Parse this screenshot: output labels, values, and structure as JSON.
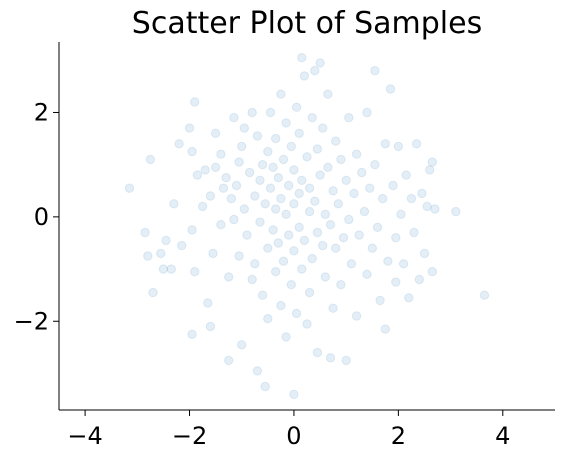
{
  "chart_data": {
    "type": "scatter",
    "title": "Scatter Plot of Samples",
    "xlabel": "",
    "ylabel": "",
    "xlim": [
      -4.5,
      5.0
    ],
    "ylim": [
      -3.7,
      3.35
    ],
    "xticks": [
      -4,
      -2,
      0,
      2,
      4
    ],
    "yticks": [
      -2,
      0,
      2
    ],
    "xtick_labels": [
      "−4",
      "−2",
      "0",
      "2",
      "4"
    ],
    "ytick_labels": [
      "−2",
      "0",
      "2"
    ],
    "grid": false,
    "spines": [
      "left",
      "bottom"
    ],
    "marker_color": "#1f77b4",
    "marker_alpha": 0.12,
    "series": [
      {
        "points": [
          [
            -3.15,
            0.55
          ],
          [
            -2.85,
            -0.3
          ],
          [
            -2.8,
            -0.75
          ],
          [
            -2.75,
            1.1
          ],
          [
            -2.7,
            -1.45
          ],
          [
            -2.55,
            -0.7
          ],
          [
            -2.5,
            -1.0
          ],
          [
            -2.45,
            -0.45
          ],
          [
            -2.3,
            0.25
          ],
          [
            -2.2,
            1.4
          ],
          [
            -2.15,
            -0.55
          ],
          [
            -2.0,
            1.7
          ],
          [
            -1.95,
            1.25
          ],
          [
            -1.95,
            -0.25
          ],
          [
            -1.9,
            -1.05
          ],
          [
            -1.95,
            -2.25
          ],
          [
            -1.9,
            2.2
          ],
          [
            -1.85,
            0.8
          ],
          [
            -1.75,
            0.2
          ],
          [
            -1.7,
            0.9
          ],
          [
            -1.65,
            -1.65
          ],
          [
            -1.6,
            -2.1
          ],
          [
            -1.6,
            0.4
          ],
          [
            -1.55,
            -0.7
          ],
          [
            -1.5,
            1.6
          ],
          [
            -1.5,
            0.95
          ],
          [
            -1.4,
            1.2
          ],
          [
            -1.4,
            -0.15
          ],
          [
            -1.35,
            0.55
          ],
          [
            -1.3,
            0.75
          ],
          [
            -1.25,
            -1.15
          ],
          [
            -1.25,
            -2.75
          ],
          [
            -1.2,
            0.35
          ],
          [
            -1.15,
            1.9
          ],
          [
            -1.15,
            -0.05
          ],
          [
            -1.1,
            0.6
          ],
          [
            -1.05,
            1.05
          ],
          [
            -1.05,
            -0.75
          ],
          [
            -1.0,
            -2.45
          ],
          [
            -1.0,
            1.35
          ],
          [
            -0.95,
            0.15
          ],
          [
            -0.95,
            1.7
          ],
          [
            -0.9,
            -0.35
          ],
          [
            -0.85,
            0.85
          ],
          [
            -0.8,
            2.0
          ],
          [
            -0.8,
            -1.2
          ],
          [
            -0.75,
            0.4
          ],
          [
            -0.75,
            -0.9
          ],
          [
            -0.7,
            1.55
          ],
          [
            -0.7,
            -2.95
          ],
          [
            -0.65,
            -0.1
          ],
          [
            -0.65,
            0.7
          ],
          [
            -0.6,
            1.0
          ],
          [
            -0.6,
            -1.5
          ],
          [
            -0.55,
            -3.25
          ],
          [
            -0.55,
            0.25
          ],
          [
            -0.5,
            -0.6
          ],
          [
            -0.5,
            1.25
          ],
          [
            -0.5,
            -1.95
          ],
          [
            -0.45,
            0.55
          ],
          [
            -0.45,
            2.0
          ],
          [
            -0.4,
            -0.25
          ],
          [
            -0.4,
            0.95
          ],
          [
            -0.35,
            -1.05
          ],
          [
            -0.35,
            0.15
          ],
          [
            -0.35,
            1.5
          ],
          [
            -0.3,
            -0.5
          ],
          [
            -0.3,
            0.75
          ],
          [
            -0.25,
            2.35
          ],
          [
            -0.25,
            -1.7
          ],
          [
            -0.25,
            0.35
          ],
          [
            -0.2,
            1.1
          ],
          [
            -0.2,
            -0.85
          ],
          [
            -0.15,
            0.05
          ],
          [
            -0.15,
            1.8
          ],
          [
            -0.15,
            -2.3
          ],
          [
            -0.1,
            0.6
          ],
          [
            -0.1,
            -0.35
          ],
          [
            -0.05,
            1.35
          ],
          [
            -0.05,
            -1.3
          ],
          [
            0.0,
            0.25
          ],
          [
            0.0,
            0.9
          ],
          [
            0.0,
            -0.65
          ],
          [
            0.0,
            -3.4
          ],
          [
            0.05,
            2.1
          ],
          [
            0.05,
            -1.85
          ],
          [
            0.1,
            0.45
          ],
          [
            0.1,
            -0.2
          ],
          [
            0.1,
            1.6
          ],
          [
            0.15,
            -1.0
          ],
          [
            0.15,
            3.05
          ],
          [
            0.15,
            0.7
          ],
          [
            0.2,
            2.7
          ],
          [
            0.2,
            -0.45
          ],
          [
            0.25,
            1.15
          ],
          [
            0.25,
            -2.05
          ],
          [
            0.3,
            0.1
          ],
          [
            0.3,
            0.55
          ],
          [
            0.3,
            -1.45
          ],
          [
            0.35,
            1.9
          ],
          [
            0.35,
            -0.8
          ],
          [
            0.4,
            2.8
          ],
          [
            0.4,
            0.3
          ],
          [
            0.45,
            -0.3
          ],
          [
            0.45,
            1.3
          ],
          [
            0.45,
            -2.6
          ],
          [
            0.5,
            2.95
          ],
          [
            0.5,
            0.8
          ],
          [
            0.55,
            -0.55
          ],
          [
            0.55,
            1.7
          ],
          [
            0.6,
            0.05
          ],
          [
            0.6,
            -1.15
          ],
          [
            0.65,
            0.95
          ],
          [
            0.65,
            2.35
          ],
          [
            0.7,
            -0.15
          ],
          [
            0.7,
            -2.7
          ],
          [
            0.75,
            0.5
          ],
          [
            0.75,
            -1.75
          ],
          [
            0.8,
            1.45
          ],
          [
            0.8,
            -0.6
          ],
          [
            0.85,
            0.25
          ],
          [
            0.9,
            1.1
          ],
          [
            0.9,
            -1.3
          ],
          [
            0.95,
            -0.4
          ],
          [
            1.0,
            0.7
          ],
          [
            1.0,
            -2.75
          ],
          [
            1.05,
            1.9
          ],
          [
            1.05,
            -0.05
          ],
          [
            1.1,
            -0.9
          ],
          [
            1.15,
            0.45
          ],
          [
            1.2,
            1.2
          ],
          [
            1.2,
            -1.9
          ],
          [
            1.25,
            -0.35
          ],
          [
            1.3,
            0.85
          ],
          [
            1.35,
            0.1
          ],
          [
            1.4,
            2.0
          ],
          [
            1.4,
            -1.1
          ],
          [
            1.45,
            0.55
          ],
          [
            1.5,
            -0.6
          ],
          [
            1.55,
            2.8
          ],
          [
            1.55,
            1.0
          ],
          [
            1.6,
            -0.2
          ],
          [
            1.65,
            -1.6
          ],
          [
            1.7,
            0.35
          ],
          [
            1.75,
            1.4
          ],
          [
            1.75,
            -2.15
          ],
          [
            1.8,
            -0.85
          ],
          [
            1.85,
            2.45
          ],
          [
            1.9,
            0.6
          ],
          [
            1.95,
            -0.4
          ],
          [
            1.95,
            -1.25
          ],
          [
            2.0,
            1.35
          ],
          [
            2.05,
            0.05
          ],
          [
            2.1,
            -0.9
          ],
          [
            2.15,
            0.8
          ],
          [
            2.2,
            -1.55
          ],
          [
            2.25,
            0.35
          ],
          [
            2.3,
            -0.3
          ],
          [
            2.35,
            1.4
          ],
          [
            2.4,
            -1.2
          ],
          [
            2.45,
            0.45
          ],
          [
            2.5,
            -0.7
          ],
          [
            2.55,
            0.2
          ],
          [
            2.6,
            0.9
          ],
          [
            2.65,
            1.05
          ],
          [
            2.65,
            -1.05
          ],
          [
            2.7,
            0.15
          ],
          [
            3.1,
            0.1
          ],
          [
            3.65,
            -1.5
          ],
          [
            -2.35,
            -1.0
          ]
        ]
      }
    ]
  }
}
